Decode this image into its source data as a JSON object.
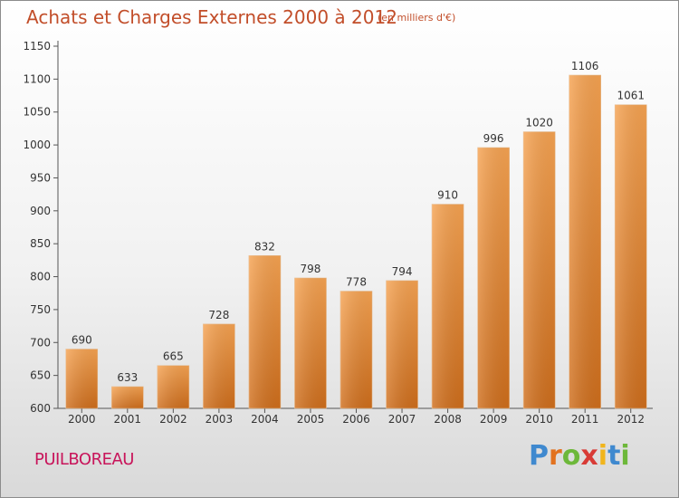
{
  "chart_data": {
    "type": "bar",
    "title": "Achats et Charges Externes 2000 à 2012",
    "subtitle": "(en milliers d'€)",
    "categories": [
      "2000",
      "2001",
      "2002",
      "2003",
      "2004",
      "2005",
      "2006",
      "2007",
      "2008",
      "2009",
      "2010",
      "2011",
      "2012"
    ],
    "values": [
      690,
      633,
      665,
      728,
      832,
      798,
      778,
      794,
      910,
      996,
      1020,
      1106,
      1061
    ],
    "ylim": [
      600,
      1150
    ],
    "yticks": [
      600,
      650,
      700,
      750,
      800,
      850,
      900,
      950,
      1000,
      1050,
      1100,
      1150
    ],
    "xlabel": "",
    "ylabel": "",
    "grid": false,
    "bar_color": "#f0923e"
  },
  "footer": {
    "city": "PUILBOREAU",
    "brand": [
      "P",
      "r",
      "o",
      "x",
      "i",
      "t",
      "i"
    ],
    "brand_colors": [
      "#3f89cf",
      "#e2721f",
      "#6db83a",
      "#d83b36",
      "#f1b51c",
      "#3f89cf",
      "#6db83a"
    ]
  }
}
